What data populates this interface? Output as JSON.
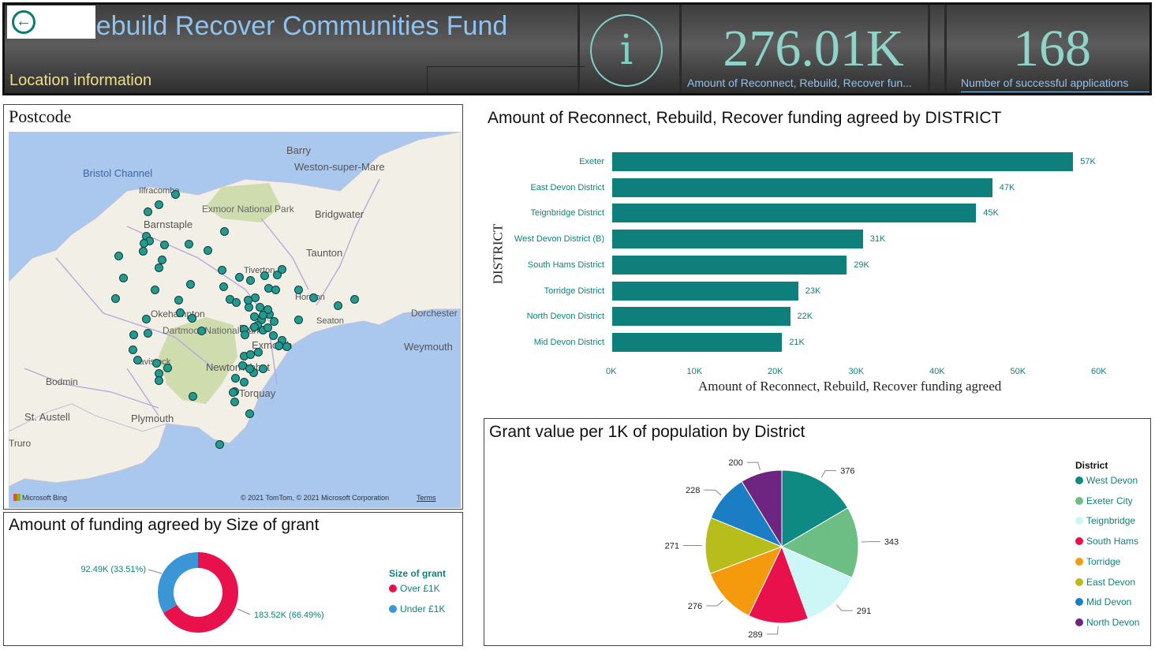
{
  "header": {
    "title": "nect, Rebuild Recover Communities Fund",
    "subtitle": "Location information",
    "back_icon": "arrow-left-icon",
    "info_icon": "i",
    "kpis": [
      {
        "value": "276.01K",
        "label": "Amount of Reconnect, Rebuild, Recover fun..."
      },
      {
        "value": "168",
        "label": "Number of successful applications"
      }
    ]
  },
  "map_panel": {
    "title": "Postcode",
    "labels": {
      "bristol_channel": "Bristol Channel",
      "barry": "Barry",
      "weston": "Weston-super-Mare",
      "ilfracombe": "Ilfracombe",
      "exmoor": "Exmoor National Park",
      "bridgwater": "Bridgwater",
      "barnstaple": "Barnstaple",
      "taunton": "Taunton",
      "tiverton": "Tiverton",
      "honiton": "Honiton",
      "okehampton": "Okehampton",
      "dartmoor": "Dartmoor National Park",
      "exeter": "Exeter",
      "dorchester": "Dorchester",
      "seaton": "Seaton",
      "weymouth": "Weymouth",
      "exmouth": "Exmouth",
      "tavistock": "Tavistock",
      "newton_abbot": "Newton Abbot",
      "bodmin": "Bodmin",
      "torquay": "Torquay",
      "st_austell": "St. Austell",
      "plymouth": "Plymouth",
      "truro": "Truro"
    },
    "attribution": "Microsoft Bing",
    "copyright": "© 2021 TomTom, © 2021 Microsoft Corporation",
    "terms": "Terms"
  },
  "donut_panel": {
    "title": "Amount of funding agreed by Size of grant",
    "legend_title": "Size of grant",
    "chart_data": {
      "type": "pie",
      "categories": [
        "Over £1K",
        "Under £1K"
      ],
      "values": [
        183.52,
        92.49
      ],
      "labels": [
        "183.52K (66.49%)",
        "92.49K (33.51%)"
      ],
      "colors": [
        "#e8114b",
        "#3b96d6"
      ]
    }
  },
  "bar_panel": {
    "title": "Amount of Reconnect, Rebuild, Recover funding agreed by DISTRICT",
    "chart_data": {
      "type": "bar",
      "orientation": "horizontal",
      "categories": [
        "Exeter",
        "East Devon District",
        "Teignbridge District",
        "West Devon District (B)",
        "South Hams District",
        "Torridge District",
        "North Devon District",
        "Mid Devon District"
      ],
      "values": [
        57,
        47,
        45,
        31,
        29,
        23,
        22,
        21
      ],
      "value_labels": [
        "57K",
        "47K",
        "45K",
        "31K",
        "29K",
        "23K",
        "22K",
        "21K"
      ],
      "xlim": [
        0,
        60
      ],
      "xticks": [
        "0K",
        "10K",
        "20K",
        "30K",
        "40K",
        "50K",
        "60K"
      ],
      "xlabel": "Amount of Reconnect, Rebuild, Recover funding agreed",
      "ylabel": "DISTRICT",
      "color": "#0f7f7c"
    }
  },
  "pie_panel": {
    "title": "Grant value per 1K of population by District",
    "legend_title": "District",
    "chart_data": {
      "type": "pie",
      "categories": [
        "West Devon",
        "Exeter City",
        "Teignbridge",
        "South Hams",
        "Torridge",
        "East Devon",
        "Mid Devon",
        "North Devon"
      ],
      "values": [
        376,
        343,
        291,
        289,
        276,
        271,
        228,
        200
      ],
      "colors": [
        "#0f8a82",
        "#6dbe85",
        "#cdf7f7",
        "#e8114b",
        "#f59a0c",
        "#b7bd1a",
        "#1b7dc4",
        "#6e2582"
      ]
    }
  }
}
